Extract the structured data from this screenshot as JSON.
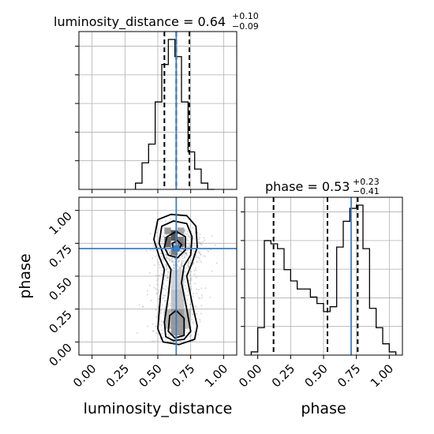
{
  "chart_data": {
    "type": "corner",
    "parameters": [
      "luminosity_distance",
      "phase"
    ],
    "truths": {
      "luminosity_distance": 0.64,
      "phase": 0.71
    },
    "colors": {
      "hist": "#000000",
      "truth": "#3b7fc4",
      "scatter": "#808080"
    },
    "grid": true,
    "panels": [
      {
        "kind": "hist1d",
        "param": "luminosity_distance",
        "title_label": "luminosity_distance = 0.64",
        "title_plus": "+0.10",
        "title_minus": "−0.09",
        "median": 0.64,
        "quantiles": [
          0.55,
          0.74
        ],
        "xlim": [
          -0.1,
          1.1
        ],
        "bin_edges": [
          0.33,
          0.38,
          0.43,
          0.48,
          0.53,
          0.58,
          0.63,
          0.68,
          0.73,
          0.78,
          0.83,
          0.88,
          0.93
        ],
        "counts": [
          0.04,
          0.17,
          0.29,
          0.56,
          0.8,
          0.96,
          0.85,
          0.56,
          0.24,
          0.13,
          0.04,
          0.0
        ]
      },
      {
        "kind": "hist1d",
        "param": "phase",
        "title_label": "phase = 0.53",
        "title_plus": "+0.23",
        "title_minus": "−0.41",
        "median": 0.53,
        "quantiles": [
          0.12,
          0.76
        ],
        "xlim": [
          -0.1,
          1.1
        ],
        "bin_edges": [
          -0.05,
          0.0,
          0.05,
          0.1,
          0.15,
          0.2,
          0.25,
          0.3,
          0.35,
          0.4,
          0.45,
          0.5,
          0.55,
          0.6,
          0.65,
          0.7,
          0.75,
          0.8,
          0.85,
          0.9,
          0.95,
          1.0,
          1.05
        ],
        "counts": [
          0.02,
          0.17,
          0.71,
          0.69,
          0.66,
          0.53,
          0.46,
          0.41,
          0.41,
          0.36,
          0.32,
          0.27,
          0.3,
          0.67,
          0.83,
          0.91,
          0.93,
          0.66,
          0.29,
          0.17,
          0.07,
          0.02
        ]
      },
      {
        "kind": "hist2d",
        "x_param": "luminosity_distance",
        "y_param": "phase",
        "xlim": [
          -0.1,
          1.1
        ],
        "ylim": [
          -0.1,
          1.1
        ],
        "x_ticks": [
          "0.00",
          "0.25",
          "0.50",
          "0.75",
          "1.00"
        ],
        "y_ticks": [
          "0.00",
          "0.25",
          "0.50",
          "0.75",
          "1.00"
        ],
        "x_label": "luminosity_distance",
        "y_label": "phase"
      }
    ],
    "phase_x_ticks": [
      "0.00",
      "0.25",
      "0.50",
      "0.75",
      "1.00"
    ],
    "phase_x_label": "phase"
  }
}
